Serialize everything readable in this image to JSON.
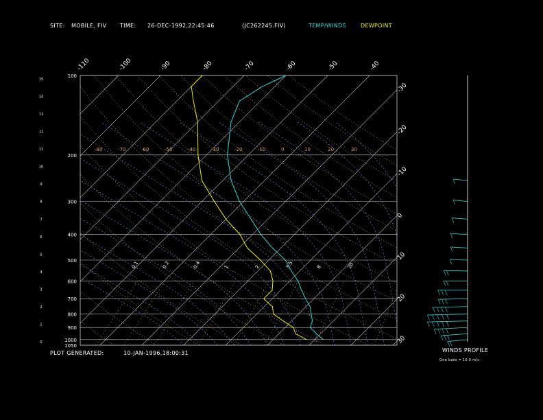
{
  "header": {
    "site_label": "SITE:",
    "site_value": "MOBILE, FIV",
    "time_label": "TIME:",
    "time_value": "26-DEC-1992,22:45:46",
    "file_id": "(JC262245.FIV)",
    "temp_winds_label": "TEMP/WINDS",
    "dewpoint_label": "DEWPOINT"
  },
  "footer": {
    "plot_generated_label": "PLOT GENERATED:",
    "plot_generated_value": "10-JAN-1996,18:00:31",
    "winds_profile_label": "WINDS PROFILE",
    "barb_note": "One barb = 10.0 m/s"
  },
  "colors": {
    "background": "#000000",
    "temp_winds": "#2fd8d8",
    "dewpoint": "#f0f000",
    "isobar": "#c8c8c8",
    "dry_adiabat": "#e0a060",
    "moist_adiabat": "#6aa0ff",
    "mixing_ratio": "#f0f000",
    "label_white": "#ffffff"
  },
  "chart_data": {
    "type": "line",
    "subtype": "skew-T log-P sounding",
    "title": "",
    "y_axis": {
      "scale": "log-pressure",
      "unit": "hPa",
      "tick_labels": [
        "100",
        "200",
        "300",
        "400",
        "500",
        "600",
        "700",
        "800",
        "900",
        "1000",
        "1050"
      ],
      "ylim": [
        1050,
        100
      ]
    },
    "height_axis": {
      "unit": "km",
      "tick_labels": [
        "15",
        "14",
        "13",
        "12",
        "11",
        "10",
        "9",
        "8",
        "7",
        "6",
        "5",
        "4",
        "3",
        "2",
        "1",
        "0"
      ]
    },
    "isotherm_labels_top": [
      "-110",
      "-100",
      "-90",
      "-80",
      "-70",
      "-60",
      "-50",
      "-40"
    ],
    "isotherm_labels_right": [
      "-30",
      "-20",
      "-10",
      "0",
      "10",
      "20",
      "30"
    ],
    "dry_adiabat_labels": [
      "-80",
      "-70",
      "-60",
      "-50",
      "-40",
      "-30",
      "-20",
      "-10",
      "0",
      "10",
      "20",
      "30"
    ],
    "mixing_ratio_labels": [
      "0.1",
      "0.2",
      "0.4",
      "1.0",
      "2.0",
      "3.5",
      "8.0",
      "20.0"
    ],
    "series": [
      {
        "name": "TEMP/WINDS",
        "pressure": [
          1000,
          950,
          900,
          850,
          800,
          750,
          700,
          650,
          600,
          550,
          500,
          450,
          400,
          350,
          300,
          250,
          200,
          150,
          125,
          110,
          100
        ],
        "temperature": [
          12,
          9,
          6,
          5,
          3,
          1,
          -2,
          -5,
          -8,
          -12,
          -16,
          -22,
          -28,
          -34,
          -41,
          -48,
          -55,
          -62,
          -65,
          -63,
          -60
        ]
      },
      {
        "name": "DEWPOINT",
        "pressure": [
          1000,
          950,
          900,
          850,
          800,
          750,
          700,
          650,
          600,
          550,
          500,
          450,
          400,
          350,
          300,
          250,
          200,
          150,
          125,
          110,
          100
        ],
        "temperature": [
          8,
          4,
          2,
          -2,
          -6,
          -8,
          -12,
          -12,
          -14,
          -17,
          -22,
          -28,
          -33,
          -40,
          -47,
          -55,
          -62,
          -70,
          -76,
          -80,
          -80
        ]
      }
    ],
    "wind_profile": {
      "unit": "m/s",
      "pressure": [
        1000,
        950,
        900,
        850,
        800,
        750,
        700,
        650,
        600,
        550,
        500,
        450,
        400,
        350,
        300,
        250
      ],
      "speed": [
        20,
        30,
        40,
        50,
        50,
        40,
        30,
        30,
        20,
        20,
        10,
        10,
        10,
        10,
        10,
        10
      ],
      "direction": [
        230,
        240,
        250,
        260,
        260,
        260,
        260,
        270,
        270,
        280,
        290,
        300,
        300,
        310,
        320,
        320
      ]
    },
    "grid": true
  }
}
